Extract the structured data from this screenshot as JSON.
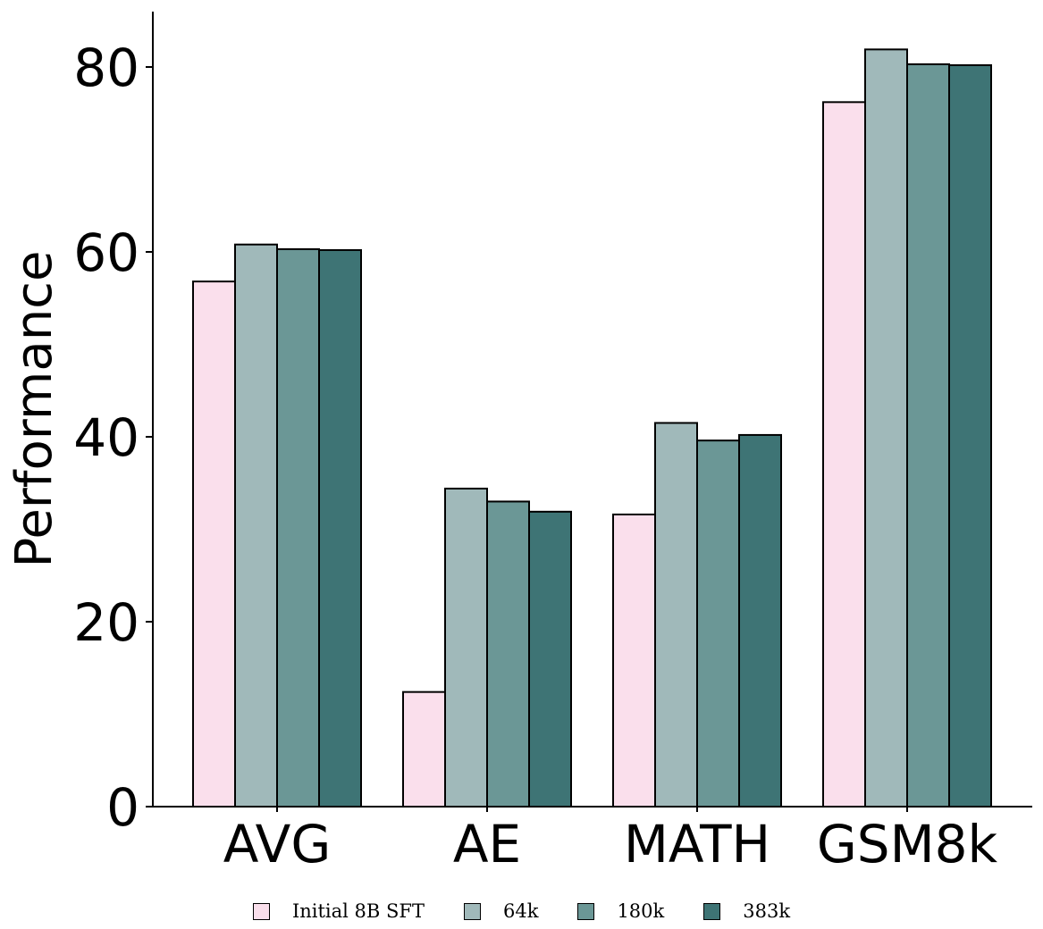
{
  "chart_data": {
    "type": "bar",
    "title": "",
    "xlabel": "",
    "ylabel": "Performance",
    "categories": [
      "AVG",
      "AE",
      "MATH",
      "GSM8k"
    ],
    "ylim": [
      0,
      86
    ],
    "yticks": [
      0,
      20,
      40,
      60,
      80
    ],
    "grid": false,
    "legend_position": "bottom",
    "series": [
      {
        "name": "Initial 8B SFT",
        "color": "#fadfec",
        "values": [
          56.8,
          12.4,
          31.6,
          76.2
        ]
      },
      {
        "name": "64k",
        "color": "#a0b9ba",
        "values": [
          60.8,
          34.4,
          41.5,
          81.9
        ]
      },
      {
        "name": "180k",
        "color": "#6b9796",
        "values": [
          60.3,
          33.0,
          39.6,
          80.3
        ]
      },
      {
        "name": "383k",
        "color": "#3e7475",
        "values": [
          60.2,
          31.9,
          40.2,
          80.2
        ]
      }
    ]
  }
}
